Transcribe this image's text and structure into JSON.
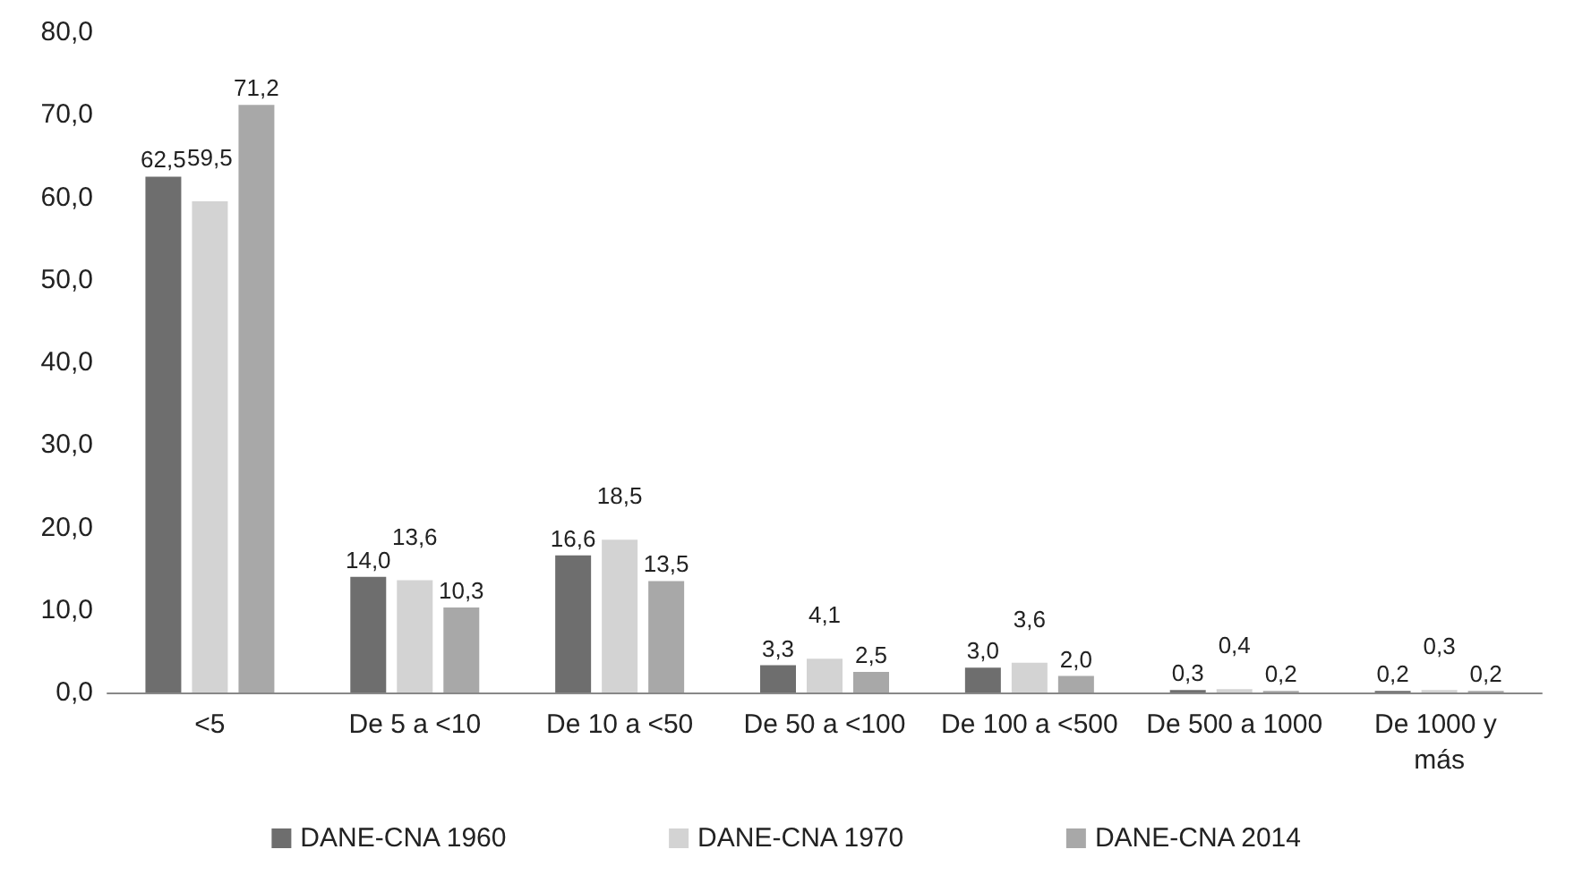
{
  "chart_data": {
    "type": "bar",
    "categories": [
      "<5",
      "De 5 a <10",
      "De 10 a <50",
      "De 50 a <100",
      "De 100 a <500",
      "De 500 a 1000",
      "De 1000 y más"
    ],
    "series": [
      {
        "name": "DANE-CNA 1960",
        "color": "#6e6e6e",
        "values": [
          62.5,
          14.0,
          16.6,
          3.3,
          3.0,
          0.3,
          0.2
        ],
        "value_labels": [
          "62,5",
          "14,0",
          "16,6",
          "3,3",
          "3,0",
          "0,3",
          "0,2"
        ]
      },
      {
        "name": "DANE-CNA 1970",
        "color": "#d3d3d3",
        "values": [
          59.5,
          13.6,
          18.5,
          4.1,
          3.6,
          0.4,
          0.3
        ],
        "value_labels": [
          "59,5",
          "13,6",
          "18,5",
          "4,1",
          "3,6",
          "0,4",
          "0,3"
        ]
      },
      {
        "name": "DANE-CNA 2014",
        "color": "#a8a8a8",
        "values": [
          71.2,
          10.3,
          13.5,
          2.5,
          2.0,
          0.2,
          0.2
        ],
        "value_labels": [
          "71,2",
          "10,3",
          "13,5",
          "2,5",
          "2,0",
          "0,2",
          "0,2"
        ]
      }
    ],
    "ylim": [
      0,
      80
    ],
    "yticks": [
      {
        "value": 0,
        "label": "0,0"
      },
      {
        "value": 10,
        "label": "10,0"
      },
      {
        "value": 20,
        "label": "20,0"
      },
      {
        "value": 30,
        "label": "30,0"
      },
      {
        "value": 40,
        "label": "40,0"
      },
      {
        "value": 50,
        "label": "50,0"
      },
      {
        "value": 60,
        "label": "60,0"
      },
      {
        "value": 70,
        "label": "70,0"
      },
      {
        "value": 80,
        "label": "80,0"
      }
    ],
    "grid": false,
    "legend": "bottom"
  }
}
